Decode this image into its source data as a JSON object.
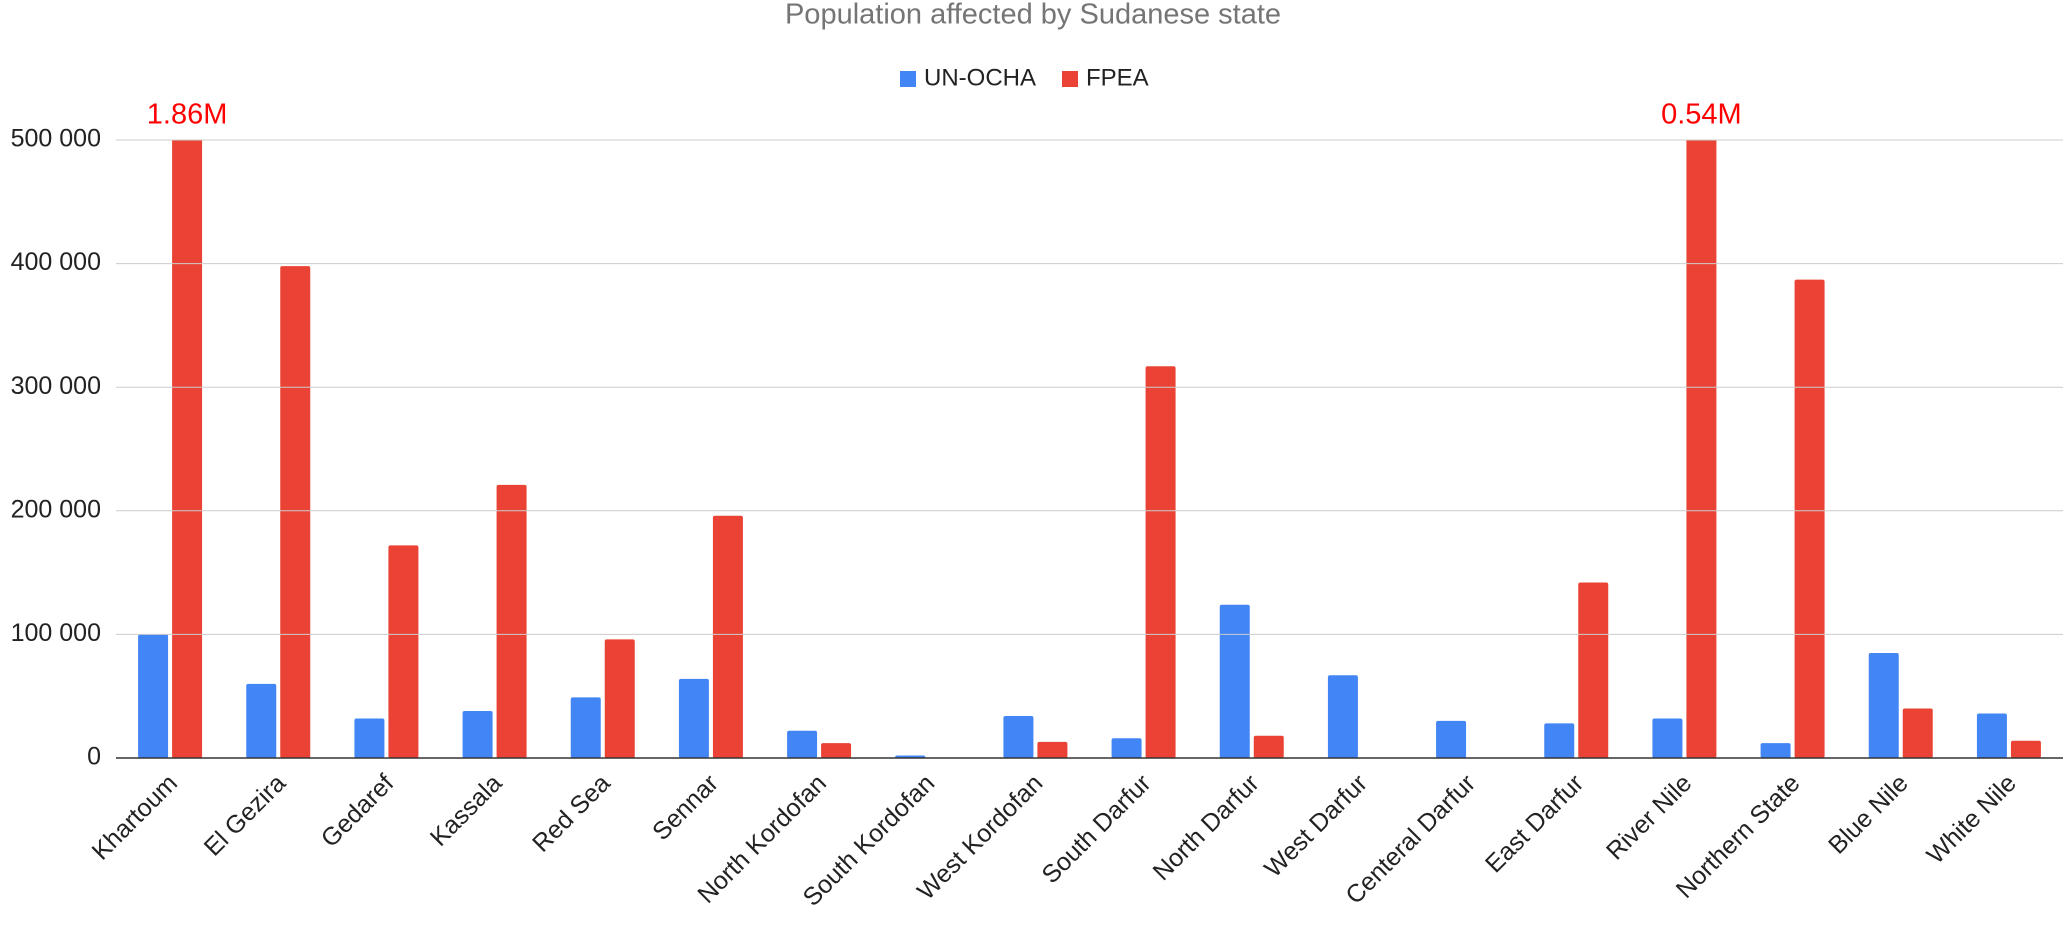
{
  "chart_data": {
    "type": "bar",
    "title": "Population affected by Sudanese state",
    "categories": [
      "Khartoum",
      "El Gezira",
      "Gedaref",
      "Kassala",
      "Red Sea",
      "Sennar",
      "North Kordofan",
      "South Kordofan",
      "West Kordofan",
      "South Darfur",
      "North Darfur",
      "West Darfur",
      "Centeral Darfur",
      "East Darfur",
      "River Nile",
      "Northern State",
      "Blue Nile",
      "White Nile"
    ],
    "series": [
      {
        "name": "UN-OCHA",
        "color": "#4285f4",
        "values": [
          100000,
          60000,
          32000,
          38000,
          49000,
          64000,
          22000,
          2000,
          34000,
          16000,
          124000,
          67000,
          30000,
          28000,
          32000,
          12000,
          85000,
          36000
        ]
      },
      {
        "name": "FPEA",
        "color": "#ea4335",
        "values": [
          1860000,
          398000,
          172000,
          221000,
          96000,
          196000,
          12000,
          null,
          13000,
          317000,
          18000,
          null,
          null,
          142000,
          540000,
          387000,
          40000,
          14000
        ],
        "value_labels": [
          "1.86M",
          null,
          null,
          null,
          null,
          null,
          null,
          null,
          null,
          null,
          null,
          null,
          null,
          null,
          "0.54M",
          null,
          null,
          null
        ]
      }
    ],
    "ylim": [
      0,
      500000
    ],
    "yticks": [
      0,
      {
        "value": 100000,
        "label": "100 000"
      },
      {
        "value": 200000,
        "label": "200 000"
      },
      {
        "value": 300000,
        "label": "300 000"
      },
      {
        "value": 400000,
        "label": "400 000"
      },
      {
        "value": 500000,
        "label": "500 000"
      }
    ],
    "grid": true,
    "legend": "top"
  }
}
